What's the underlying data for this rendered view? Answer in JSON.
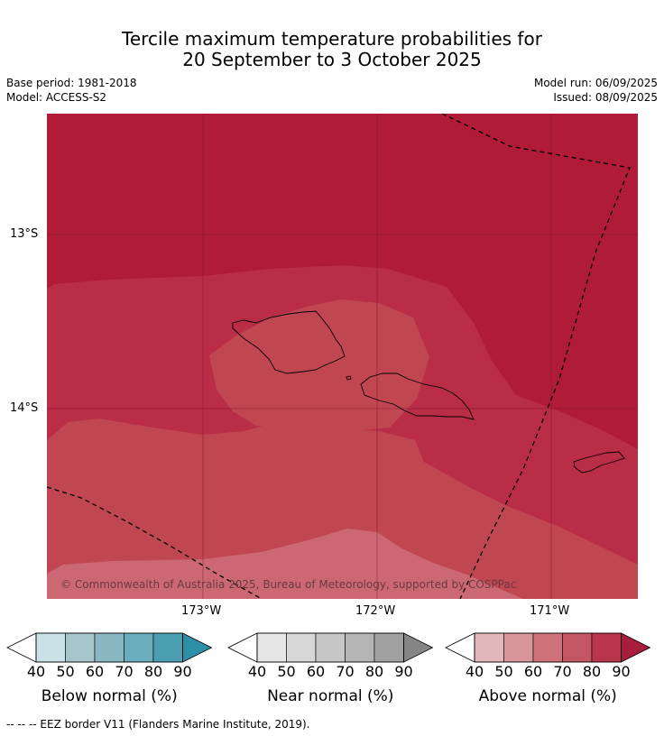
{
  "title_line1": "Tercile maximum temperature probabilities for",
  "title_line2": "20 September to 3 October 2025",
  "base_period": "Base period: 1981-2018",
  "model": "Model: ACCESS-S2",
  "model_run": "Model run: 06/09/2025",
  "issued": "Issued: 08/09/2025",
  "copyright": "© Commonwealth of Australia 2025, Bureau of Meteorology, supported by COSPPac",
  "lat_labels": [
    "13°S",
    "14°S"
  ],
  "lon_labels": [
    "173°W",
    "172°W",
    "171°W"
  ],
  "colorbars": [
    {
      "title": "Below normal (%)",
      "ticks": [
        "40",
        "50",
        "60",
        "70",
        "80",
        "90"
      ],
      "colors": [
        "#c9e1e7",
        "#a6c6cc",
        "#89b8c3",
        "#6aadbd",
        "#4c9fb2",
        "#2d8fa6"
      ]
    },
    {
      "title": "Near normal (%)",
      "ticks": [
        "40",
        "50",
        "60",
        "70",
        "80",
        "90"
      ],
      "colors": [
        "#e6e6e6",
        "#d7d7d7",
        "#c6c6c6",
        "#b4b4b4",
        "#a0a0a0",
        "#858585"
      ]
    },
    {
      "title": "Above normal (%)",
      "ticks": [
        "40",
        "50",
        "60",
        "70",
        "80",
        "90"
      ],
      "colors": [
        "#e3b8bd",
        "#d8959c",
        "#cf7179",
        "#c45563",
        "#b9354b",
        "#a81c3c"
      ]
    }
  ],
  "footer": "--  --  -- EEZ border V11 (Flanders Marine Institute, 2019).",
  "map_colors": {
    "c90": "#b01c38",
    "c80": "#b92d47",
    "c70": "#c04652",
    "c60": "#cb6874"
  }
}
